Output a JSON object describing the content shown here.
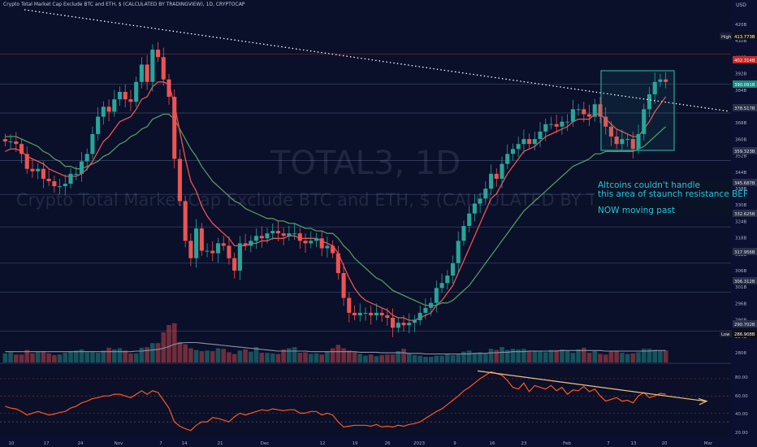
{
  "header": {
    "text": "Crypto Total Market Cap Exclude BTC and ETH, $ (CALCULATED BY TRADINGVIEW), 1D, CRYPTOCAP"
  },
  "watermark": {
    "ticker": "TOTAL3, 1D",
    "name": "Crypto Total Market Cap Exclude BTC and ETH, $ (CALCULATED BY TRADINGVIEW)"
  },
  "annotation": {
    "line1": "Altcoins couldn't handle",
    "line2": "this area of staunch resistance BEF",
    "line3": "NOW moving past"
  },
  "price_axis": {
    "unit": "USD",
    "ticks": [
      "420B",
      "410B",
      "400B",
      "392B",
      "384B",
      "376B",
      "368B",
      "360B",
      "352B",
      "344B",
      "338B",
      "330B",
      "324B",
      "318B",
      "312B",
      "306B",
      "301B",
      "296B",
      "290B",
      "284B",
      "2808"
    ],
    "badges": [
      {
        "text": "High",
        "value": "413.773B",
        "kind": "high"
      },
      {
        "text": "",
        "value": "402.314B",
        "kind": "red"
      },
      {
        "text": "",
        "value": "390.091B",
        "kind": "green"
      },
      {
        "text": "",
        "value": "378.517B",
        "kind": "gray"
      },
      {
        "text": "",
        "value": "359.323B",
        "kind": "gray"
      },
      {
        "text": "",
        "value": "345.687B",
        "kind": "gray"
      },
      {
        "text": "",
        "value": "332.625B",
        "kind": "gray"
      },
      {
        "text": "",
        "value": "317.956B",
        "kind": "gray"
      },
      {
        "text": "",
        "value": "306.312B",
        "kind": "gray"
      },
      {
        "text": "",
        "value": "290.702B",
        "kind": "gray"
      },
      {
        "text": "Low",
        "value": "286.908B",
        "kind": "low"
      }
    ]
  },
  "rsi_axis": {
    "ticks": [
      "80.00",
      "60.00",
      "40.00",
      "20.00"
    ]
  },
  "time_axis": {
    "ticks": [
      "10",
      "17",
      "24",
      "Nov",
      "7",
      "14",
      "21",
      "Dec",
      "12",
      "19",
      "26",
      "2023",
      "9",
      "16",
      "23",
      "Feb",
      "7",
      "13",
      "20",
      "Mar"
    ]
  },
  "colors": {
    "background": "#0a0f2a",
    "up": "#26a69a",
    "down": "#ef5350",
    "ema_fast": "#ef5350",
    "ema_slow": "#66bb6a",
    "trendline": "#ffffff",
    "box": "#26a69a",
    "rsi": "#ff5722",
    "rsi_trend": "#f0c080"
  },
  "chart_data": {
    "type": "candlestick",
    "interval": "1D",
    "unit": "USD (billions)",
    "ylim": [
      278,
      424
    ],
    "close": [
      367,
      367,
      366,
      362,
      356,
      355,
      356,
      352,
      351,
      349,
      349,
      350,
      354,
      354,
      359,
      362,
      370,
      377,
      381,
      379,
      384,
      387,
      384,
      383,
      391,
      398,
      391,
      404,
      401,
      392,
      385,
      360,
      343,
      327,
      320,
      332,
      323,
      323,
      322,
      326,
      325,
      320,
      315,
      326,
      325,
      327,
      329,
      328,
      330,
      331,
      330,
      329,
      330,
      330,
      327,
      326,
      327,
      328,
      324,
      325,
      322,
      314,
      304,
      298,
      297,
      298,
      298,
      297,
      298,
      297,
      296,
      292,
      294,
      293,
      294,
      295,
      298,
      300,
      302,
      308,
      310,
      313,
      318,
      327,
      333,
      338,
      342,
      344,
      348,
      354,
      352,
      358,
      362,
      364,
      366,
      368,
      366,
      368,
      371,
      374,
      374,
      373,
      375,
      375,
      380,
      380,
      378,
      377,
      382,
      377,
      373,
      369,
      366,
      368,
      368,
      364,
      370,
      380,
      386,
      391,
      392,
      391
    ],
    "volume": [
      16,
      18,
      14,
      14,
      22,
      16,
      18,
      20,
      16,
      13,
      14,
      17,
      19,
      21,
      23,
      18,
      18,
      17,
      21,
      26,
      23,
      25,
      21,
      16,
      16,
      26,
      27,
      34,
      34,
      53,
      66,
      69,
      36,
      32,
      25,
      22,
      20,
      21,
      20,
      25,
      24,
      18,
      15,
      21,
      23,
      19,
      27,
      17,
      17,
      16,
      15,
      23,
      25,
      27,
      17,
      18,
      15,
      16,
      14,
      19,
      25,
      31,
      25,
      21,
      18,
      15,
      12,
      14,
      11,
      13,
      14,
      14,
      20,
      24,
      16,
      13,
      12,
      10,
      10,
      12,
      12,
      15,
      13,
      14,
      19,
      21,
      17,
      18,
      15,
      24,
      22,
      27,
      22,
      24,
      23,
      24,
      21,
      21,
      20,
      18,
      22,
      22,
      23,
      21,
      17,
      23,
      26,
      17,
      20,
      15,
      14,
      20,
      21,
      17,
      15,
      16,
      18,
      24,
      24,
      22,
      20,
      21
    ],
    "rsi": [
      48,
      46,
      45,
      42,
      38,
      40,
      42,
      40,
      38,
      39,
      41,
      42,
      46,
      48,
      52,
      54,
      57,
      58,
      60,
      60,
      62,
      62,
      60,
      58,
      62,
      66,
      62,
      66,
      64,
      55,
      46,
      30,
      25,
      22,
      20,
      26,
      30,
      30,
      35,
      34,
      32,
      30,
      36,
      40,
      38,
      40,
      42,
      44,
      43,
      45,
      44,
      43,
      44,
      44,
      40,
      40,
      42,
      42,
      38,
      40,
      38,
      30,
      24,
      25,
      26,
      26,
      26,
      25,
      27,
      24,
      25,
      24,
      26,
      25,
      27,
      28,
      30,
      34,
      38,
      42,
      45,
      50,
      55,
      60,
      66,
      70,
      75,
      80,
      84,
      88,
      86,
      84,
      78,
      70,
      68,
      75,
      65,
      72,
      70,
      68,
      72,
      66,
      70,
      62,
      67,
      66,
      71,
      65,
      68,
      60,
      54,
      56,
      58,
      54,
      55,
      52,
      60,
      64,
      58,
      60,
      63,
      62
    ],
    "ema_fast": [
      363,
      364,
      364,
      363,
      361,
      360,
      359,
      358,
      356,
      355,
      354,
      353,
      353,
      353,
      354,
      356,
      359,
      363,
      367,
      369,
      372,
      375,
      376,
      377,
      380,
      384,
      385,
      389,
      391,
      391,
      390,
      382,
      371,
      360,
      351,
      347,
      341,
      337,
      334,
      332,
      330,
      328,
      325,
      325,
      325,
      326,
      326,
      327,
      327,
      328,
      328,
      328,
      329,
      329,
      328,
      328,
      328,
      328,
      327,
      326,
      325,
      322,
      317,
      312,
      308,
      305,
      303,
      302,
      301,
      300,
      299,
      297,
      296,
      296,
      295,
      295,
      296,
      297,
      298,
      301,
      303,
      306,
      309,
      314,
      319,
      324,
      329,
      334,
      339,
      344,
      346,
      350,
      354,
      357,
      360,
      363,
      364,
      365,
      367,
      369,
      370,
      371,
      372,
      373,
      375,
      376,
      376,
      376,
      378,
      378,
      376,
      374,
      372,
      371,
      370,
      369,
      369,
      372,
      375,
      379,
      382,
      385
    ],
    "ema_slow": [
      369,
      369,
      369,
      368,
      367,
      366,
      365,
      363,
      362,
      360,
      359,
      357,
      357,
      356,
      356,
      357,
      358,
      359,
      361,
      362,
      364,
      366,
      367,
      369,
      370,
      372,
      373,
      376,
      377,
      378,
      378,
      376,
      372,
      368,
      364,
      361,
      357,
      354,
      351,
      349,
      347,
      345,
      343,
      342,
      340,
      339,
      338,
      337,
      336,
      336,
      335,
      335,
      334,
      334,
      333,
      332,
      332,
      331,
      331,
      330,
      330,
      328,
      325,
      323,
      320,
      318,
      316,
      314,
      312,
      311,
      309,
      307,
      306,
      305,
      304,
      303,
      302,
      301,
      301,
      301,
      302,
      302,
      303,
      305,
      307,
      309,
      312,
      315,
      318,
      321,
      324,
      327,
      330,
      333,
      336,
      339,
      341,
      343,
      345,
      347,
      349,
      351,
      353,
      355,
      357,
      358,
      359,
      360,
      362,
      362,
      363,
      363,
      363,
      363,
      363,
      363,
      364,
      365,
      367,
      369,
      371,
      373
    ],
    "volume_ma": [
      19,
      19,
      19,
      19,
      19,
      19,
      19,
      19,
      19,
      19,
      19,
      19,
      19,
      19,
      19,
      19,
      19,
      19,
      19,
      19,
      19,
      19,
      19,
      19,
      20,
      20,
      21,
      22,
      23,
      25,
      28,
      32,
      34,
      35,
      35,
      35,
      34,
      33,
      32,
      31,
      30,
      29,
      28,
      27,
      26,
      25,
      24,
      23,
      22,
      21,
      20,
      20,
      20,
      20,
      20,
      20,
      19,
      19,
      19,
      19,
      19,
      19,
      19,
      19,
      19,
      18,
      18,
      18,
      18,
      17,
      17,
      17,
      17,
      17,
      16,
      16,
      16,
      15,
      15,
      15,
      15,
      15,
      15,
      15,
      15,
      15,
      16,
      16,
      16,
      17,
      17,
      18,
      18,
      19,
      19,
      19,
      20,
      20,
      20,
      20,
      20,
      20,
      21,
      21,
      21,
      21,
      21,
      21,
      21,
      21,
      20,
      20,
      20,
      20,
      20,
      20,
      20,
      20,
      20,
      21,
      21,
      21
    ]
  }
}
